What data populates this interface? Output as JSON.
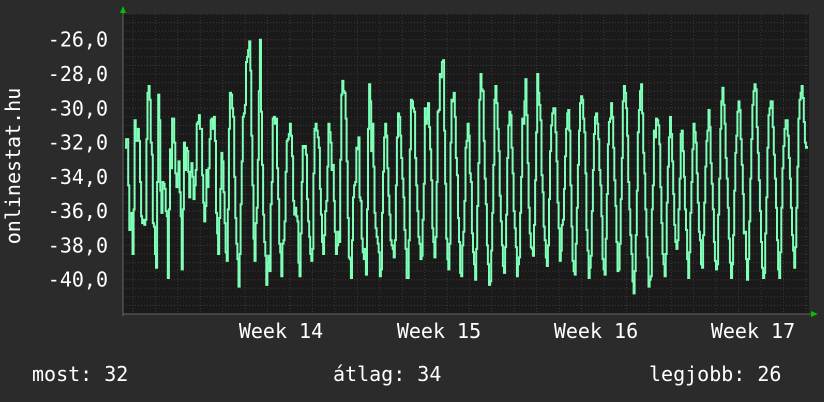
{
  "chart_data": {
    "type": "line",
    "title": "",
    "ylabel": "onlinestat.hu",
    "xlabel": "",
    "ylim": [
      -42,
      -24.5
    ],
    "y_ticks": [
      "-26,0",
      "-28,0",
      "-30,0",
      "-32,0",
      "-34,0",
      "-36,0",
      "-38,0",
      "-40,0"
    ],
    "y_tick_values": [
      -26,
      -28,
      -30,
      -32,
      -34,
      -36,
      -38,
      -40
    ],
    "x_ticks": [
      "Week 14",
      "Week 15",
      "Week 16",
      "Week 17"
    ],
    "grid": true,
    "colors": {
      "background": "#2b2b2b",
      "plot": "#1a1a1a",
      "line": "#7fffb8",
      "grid": "#5a2a2a",
      "arrow": "#00c000"
    },
    "series": [
      {
        "values": [
          -32.3,
          -31.8,
          -31.8,
          -34.5,
          -37.1,
          -37.0,
          -36.1,
          -38.5,
          -35.9,
          -30.7,
          -31.9,
          -31.9,
          -31.2,
          -31.9,
          -34.3,
          -36.3,
          -36.7,
          -36.5,
          -36.8,
          -36.5,
          -31.8,
          -29.1,
          -28.7,
          -29.5,
          -32.0,
          -32.7,
          -36.7,
          -36.9,
          -38.5,
          -39.3,
          -34.3,
          -29.2,
          -30.7,
          -34.8,
          -36.1,
          -34.3,
          -34.4,
          -34.7,
          -36.0,
          -36.3,
          -39.9,
          -35.9,
          -32.4,
          -33.5,
          -30.6,
          -30.6,
          -32.0,
          -33.8,
          -34.6,
          -33.9,
          -33.1,
          -34.9,
          -36.3,
          -39.4,
          -35.9,
          -32.0,
          -33.6,
          -32.3,
          -32.5,
          -33.7,
          -35.2,
          -33.7,
          -33.2,
          -34.0,
          -35.3,
          -34.5,
          -33.6,
          -30.9,
          -30.8,
          -30.4,
          -31.2,
          -31.2,
          -33.9,
          -35.5,
          -36.6,
          -35.7,
          -33.6,
          -34.6,
          -33.5,
          -31.8,
          -30.7,
          -30.6,
          -31.2,
          -30.5,
          -31.9,
          -36.1,
          -37.3,
          -38.5,
          -36.4,
          -34.7,
          -32.6,
          -33.1,
          -34.9,
          -36.7,
          -38.4,
          -38.9,
          -35.9,
          -31.2,
          -29.1,
          -29.2,
          -30.0,
          -30.5,
          -34.0,
          -36.4,
          -37.9,
          -38.8,
          -40.4,
          -38.5,
          -35.6,
          -33.1,
          -30.5,
          -30.3,
          -29.8,
          -27.3,
          -27.0,
          -26.6,
          -26.1,
          -27.8,
          -31.6,
          -34.5,
          -37.6,
          -38.9,
          -36.7,
          -35.8,
          -33.0,
          -29.0,
          -26.0,
          -30.2,
          -33.3,
          -36.2,
          -37.8,
          -38.6,
          -40.3,
          -39.0,
          -38.6,
          -39.5,
          -35.6,
          -34.3,
          -30.6,
          -30.5,
          -30.9,
          -30.6,
          -33.5,
          -35.3,
          -37.9,
          -38.4,
          -39.8,
          -37.9,
          -37.7,
          -36.6,
          -33.7,
          -31.9,
          -31.8,
          -31.5,
          -30.9,
          -31.6,
          -32.8,
          -35.4,
          -36.2,
          -35.8,
          -36.3,
          -36.6,
          -39.0,
          -39.8,
          -37.3,
          -34.3,
          -32.2,
          -32.3,
          -32.2,
          -32.7,
          -35.3,
          -36.6,
          -37.5,
          -38.5,
          -38.9,
          -38.2,
          -33.8,
          -31.2,
          -30.9,
          -31.3,
          -31.7,
          -32.3,
          -34.7,
          -36.2,
          -37.8,
          -38.5,
          -37.4,
          -36.0,
          -35.4,
          -33.4,
          -30.9,
          -31.4,
          -32.0,
          -33.6,
          -33.3,
          -35.4,
          -37.2,
          -38.5,
          -38.0,
          -37.2,
          -37.8,
          -33.0,
          -29.2,
          -28.4,
          -29.0,
          -29.1,
          -30.6,
          -33.1,
          -36.4,
          -38.7,
          -38.8,
          -39.9,
          -37.7,
          -35.2,
          -34.5,
          -34.3,
          -32.3,
          -32.4,
          -31.7,
          -35.2,
          -35.4,
          -37.6,
          -38.4,
          -38.8,
          -38.2,
          -39.7,
          -35.9,
          -31.2,
          -28.6,
          -29.6,
          -32.5,
          -30.9,
          -33.4,
          -36.1,
          -37.0,
          -37.5,
          -37.9,
          -38.4,
          -39.8,
          -39.4,
          -36.1,
          -33.7,
          -31.7,
          -30.9,
          -31.6,
          -33.5,
          -35.1,
          -36.2,
          -37.7,
          -38.0,
          -38.2,
          -38.7,
          -37.7,
          -34.5,
          -31.7,
          -30.3,
          -30.5,
          -31.6,
          -32.9,
          -34.1,
          -35.2,
          -37.1,
          -38.2,
          -39.9,
          -39.9,
          -37.7,
          -32.4,
          -29.5,
          -29.6,
          -30.0,
          -30.2,
          -32.9,
          -34.5,
          -36.0,
          -37.5,
          -37.9,
          -38.8,
          -38.6,
          -36.5,
          -34.4,
          -30.0,
          -30.9,
          -30.6,
          -29.7,
          -31.1,
          -32.4,
          -34.2,
          -37.0,
          -37.8,
          -38.7,
          -37.5,
          -34.3,
          -30.2,
          -30.1,
          -28.0,
          -28.2,
          -27.3,
          -27.2,
          -31.3,
          -34.4,
          -37.6,
          -38.8,
          -39.4,
          -37.9,
          -32.0,
          -29.5,
          -29.6,
          -29.1,
          -30.5,
          -32.9,
          -33.9,
          -36.4,
          -37.8,
          -39.6,
          -39.8,
          -38.0,
          -37.2,
          -35.4,
          -32.3,
          -31.9,
          -30.9,
          -31.6,
          -33.8,
          -34.3,
          -37.3,
          -38.4,
          -39.1,
          -40.0,
          -38.2,
          -35.7,
          -33.2,
          -29.5,
          -28.0,
          -28.9,
          -29.0,
          -31.9,
          -34.1,
          -35.6,
          -38.0,
          -39.1,
          -40.3,
          -40.1,
          -38.3,
          -36.1,
          -33.3,
          -29.5,
          -28.7,
          -29.7,
          -31.2,
          -32.5,
          -35.1,
          -36.6,
          -38.0,
          -39.2,
          -39.6,
          -38.1,
          -36.2,
          -32.9,
          -31.0,
          -30.2,
          -30.4,
          -32.3,
          -33.8,
          -36.0,
          -37.0,
          -38.1,
          -39.8,
          -39.1,
          -38.7,
          -36.1,
          -34.0,
          -30.6,
          -30.9,
          -29.6,
          -28.3,
          -30.4,
          -33.2,
          -35.8,
          -37.3,
          -38.1,
          -38.2,
          -38.6,
          -36.8,
          -34.2,
          -31.4,
          -28.0,
          -29.1,
          -29.8,
          -30.7,
          -33.9,
          -34.9,
          -36.9,
          -37.7,
          -38.7,
          -39.2,
          -38.0,
          -35.3,
          -32.5,
          -31.0,
          -30.3,
          -30.0,
          -30.0,
          -31.4,
          -33.1,
          -35.5,
          -37.0,
          -38.9,
          -38.3,
          -36.8,
          -36.5,
          -34.7,
          -32.8,
          -31.2,
          -30.3,
          -30.1,
          -31.3,
          -34.5,
          -36.9,
          -38.9,
          -39.5,
          -39.7,
          -37.9,
          -35.8,
          -33.3,
          -31.3,
          -29.7,
          -29.3,
          -29.5,
          -30.6,
          -31.4,
          -33.8,
          -37.1,
          -38.3,
          -39.9,
          -39.3,
          -38.6,
          -36.0,
          -33.6,
          -31.5,
          -30.5,
          -30.3,
          -30.9,
          -31.8,
          -33.6,
          -34.5,
          -36.3,
          -38.8,
          -39.4,
          -39.7,
          -37.6,
          -35.0,
          -32.1,
          -30.8,
          -30.6,
          -29.7,
          -30.5,
          -32.3,
          -34.2,
          -35.7,
          -37.8,
          -39.5,
          -39.4,
          -37.9,
          -35.3,
          -32.9,
          -29.6,
          -28.7,
          -29.1,
          -30.0,
          -31.6,
          -34.3,
          -35.9,
          -37.4,
          -38.5,
          -40.1,
          -40.8,
          -39.5,
          -37.4,
          -34.8,
          -31.4,
          -30.1,
          -29.0,
          -28.6,
          -30.3,
          -32.6,
          -33.8,
          -35.9,
          -37.5,
          -38.7,
          -40.4,
          -40.0,
          -39.8,
          -35.9,
          -34.5,
          -31.3,
          -31.7,
          -30.6,
          -30.7,
          -31.0,
          -32.1,
          -34.6,
          -36.7,
          -38.5,
          -39.1,
          -39.8,
          -38.5,
          -35.5,
          -33.4,
          -31.7,
          -30.5,
          -31.5,
          -33.1,
          -35.0,
          -36.8,
          -37.8,
          -38.2,
          -37.7,
          -35.9,
          -34.1,
          -31.5,
          -31.3,
          -32.5,
          -34.0,
          -35.9,
          -37.1,
          -38.8,
          -39.9,
          -38.4,
          -36.1,
          -34.3,
          -32.4,
          -30.9,
          -31.4,
          -32.0,
          -33.8,
          -35.5,
          -37.2,
          -37.7,
          -39.1,
          -39.3,
          -37.4,
          -35.5,
          -33.4,
          -31.9,
          -31.3,
          -30.1,
          -31.1,
          -33.2,
          -34.4,
          -35.9,
          -37.8,
          -38.9,
          -39.4,
          -39.1,
          -36.2,
          -34.1,
          -31.2,
          -29.6,
          -28.8,
          -29.8,
          -30.9,
          -32.9,
          -34.1,
          -35.8,
          -37.6,
          -39.0,
          -39.9,
          -39.1,
          -37.4,
          -34.8,
          -32.6,
          -31.6,
          -30.2,
          -29.6,
          -30.1,
          -31.8,
          -33.3,
          -35.0,
          -37.3,
          -37.2,
          -38.8,
          -40.0,
          -38.8,
          -36.6,
          -34.1,
          -31.8,
          -29.8,
          -29.0,
          -28.6,
          -28.9,
          -31.1,
          -32.6,
          -34.2,
          -36.0,
          -37.8,
          -39.3,
          -39.9,
          -39.6,
          -37.3,
          -35.2,
          -32.3,
          -30.4,
          -30.0,
          -29.6,
          -29.6,
          -31.1,
          -32.7,
          -34.1,
          -35.8,
          -37.7,
          -39.4,
          -39.9,
          -38.4,
          -35.8,
          -33.5,
          -32.2,
          -31.2,
          -30.7,
          -30.7,
          -31.6,
          -32.9,
          -34.1,
          -35.8,
          -37.4,
          -38.3,
          -39.3,
          -38.1,
          -35.8,
          -33.4,
          -30.6,
          -29.5,
          -29.1,
          -28.7,
          -29.4,
          -30.8,
          -32.0,
          -32.3,
          -32.2
        ]
      }
    ]
  },
  "legend": {
    "current": "most: 32",
    "average": "átlag: 34",
    "best": "legjobb: 26"
  }
}
